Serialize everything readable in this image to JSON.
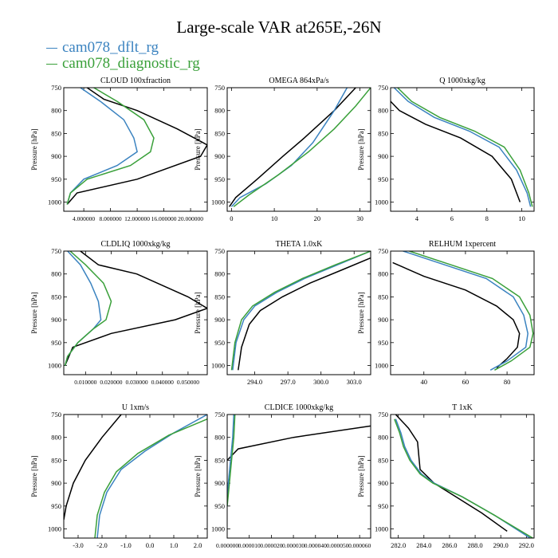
{
  "page_title": "Large-scale VAR at265E,-26N",
  "legend": [
    {
      "name": "cam078_dflt_rg",
      "color": "#3b83c0"
    },
    {
      "name": "cam078_diagnostic_rg",
      "color": "#3aa03a"
    }
  ],
  "ylabel": "Pressure [hPa]",
  "chart_data": [
    {
      "type": "line",
      "title": "CLOUD  100xfraction",
      "ylim": [
        1020,
        750
      ],
      "yticks": [
        750,
        800,
        850,
        900,
        950,
        1000
      ],
      "xlim": [
        1.0,
        22.5
      ],
      "xticks": [
        {
          "v": 4.0,
          "l": "4.000000"
        },
        {
          "v": 8.0,
          "l": "8.000000"
        },
        {
          "v": 12.0,
          "l": "12.000000"
        },
        {
          "v": 16.0,
          "l": "16.000000"
        },
        {
          "v": 20.0,
          "l": "20.000000"
        }
      ],
      "series": [
        {
          "color": "#000000",
          "x": [
            4.5,
            7,
            12,
            18,
            22.5,
            21.5,
            12,
            3,
            1.5
          ],
          "y": [
            750,
            775,
            800,
            840,
            875,
            900,
            950,
            980,
            1005
          ]
        },
        {
          "color": "#3b83c0",
          "x": [
            3.5,
            6.5,
            10,
            11.5,
            12,
            9,
            4,
            2,
            1.5
          ],
          "y": [
            750,
            780,
            820,
            860,
            890,
            920,
            950,
            980,
            1005
          ]
        },
        {
          "color": "#3aa03a",
          "x": [
            5.5,
            9,
            13,
            14.5,
            14,
            11,
            4.5,
            2,
            1.5
          ],
          "y": [
            750,
            780,
            820,
            860,
            890,
            920,
            950,
            980,
            1005
          ]
        }
      ]
    },
    {
      "type": "line",
      "title": "OMEGA  864xPa/s",
      "ylim": [
        1020,
        750
      ],
      "yticks": [
        750,
        800,
        850,
        900,
        950,
        1000
      ],
      "xlim": [
        -1,
        32.5
      ],
      "xticks": [
        {
          "v": 0,
          "l": "0"
        },
        {
          "v": 10,
          "l": "10"
        },
        {
          "v": 20,
          "l": "20"
        },
        {
          "v": 30,
          "l": "30"
        }
      ],
      "series": [
        {
          "color": "#000000",
          "x": [
            29,
            24,
            17,
            12,
            6,
            1,
            -0.5
          ],
          "y": [
            750,
            800,
            860,
            900,
            950,
            990,
            1010
          ]
        },
        {
          "color": "#3b83c0",
          "x": [
            27,
            24,
            19,
            14,
            8,
            2,
            0
          ],
          "y": [
            750,
            800,
            870,
            920,
            960,
            990,
            1010
          ]
        },
        {
          "color": "#3aa03a",
          "x": [
            32.5,
            29,
            24,
            18,
            11,
            4,
            0.5
          ],
          "y": [
            750,
            790,
            840,
            890,
            940,
            985,
            1010
          ]
        }
      ]
    },
    {
      "type": "line",
      "title": "Q  1000xkg/kg",
      "ylim": [
        1020,
        750
      ],
      "yticks": [
        750,
        800,
        850,
        900,
        950,
        1000
      ],
      "xlim": [
        2.5,
        10.7
      ],
      "xticks": [
        {
          "v": 4,
          "l": "4"
        },
        {
          "v": 6,
          "l": "6"
        },
        {
          "v": 8,
          "l": "8"
        },
        {
          "v": 10,
          "l": "10"
        }
      ],
      "series": [
        {
          "color": "#000000",
          "x": [
            2.5,
            3,
            4.5,
            6.5,
            8.3,
            9.4,
            9.9
          ],
          "y": [
            780,
            800,
            830,
            860,
            900,
            950,
            1000
          ]
        },
        {
          "color": "#3b83c0",
          "x": [
            2.7,
            3.5,
            5,
            7,
            8.7,
            9.7,
            10.3,
            10.5
          ],
          "y": [
            750,
            780,
            815,
            845,
            880,
            930,
            980,
            1010
          ]
        },
        {
          "color": "#3aa03a",
          "x": [
            2.9,
            3.7,
            5.3,
            7.3,
            9,
            9.9,
            10.4,
            10.6
          ],
          "y": [
            750,
            780,
            815,
            845,
            880,
            930,
            980,
            1010
          ]
        }
      ]
    },
    {
      "type": "line",
      "title": "CLDLIQ  1000xkg/kg",
      "ylim": [
        1020,
        750
      ],
      "yticks": [
        750,
        800,
        850,
        900,
        950,
        1000
      ],
      "xlim": [
        0.0015,
        0.0575
      ],
      "xticks": [
        {
          "v": 0.01,
          "l": "0.010000"
        },
        {
          "v": 0.02,
          "l": "0.020000"
        },
        {
          "v": 0.03,
          "l": "0.030000"
        },
        {
          "v": 0.04,
          "l": "0.040000"
        },
        {
          "v": 0.05,
          "l": "0.050000"
        }
      ],
      "series": [
        {
          "color": "#000000",
          "x": [
            0.008,
            0.015,
            0.03,
            0.05,
            0.0575,
            0.045,
            0.02,
            0.005,
            0.002
          ],
          "y": [
            750,
            780,
            800,
            850,
            875,
            900,
            930,
            960,
            1000
          ]
        },
        {
          "color": "#3b83c0",
          "x": [
            0.003,
            0.008,
            0.012,
            0.015,
            0.016,
            0.013,
            0.007,
            0.003,
            0.002
          ],
          "y": [
            750,
            780,
            820,
            860,
            900,
            920,
            950,
            980,
            1000
          ]
        },
        {
          "color": "#3aa03a",
          "x": [
            0.004,
            0.01,
            0.017,
            0.02,
            0.018,
            0.013,
            0.007,
            0.003,
            0.002
          ],
          "y": [
            750,
            780,
            820,
            860,
            900,
            920,
            950,
            980,
            1000
          ]
        }
      ]
    },
    {
      "type": "line",
      "title": "THETA  1.0xK",
      "ylim": [
        1020,
        750
      ],
      "yticks": [
        750,
        800,
        850,
        900,
        950,
        1000
      ],
      "xlim": [
        291.5,
        304.5
      ],
      "xticks": [
        {
          "v": 294,
          "l": "294.0"
        },
        {
          "v": 297,
          "l": "297.0"
        },
        {
          "v": 300,
          "l": "300.0"
        },
        {
          "v": 303,
          "l": "303.0"
        }
      ],
      "series": [
        {
          "color": "#000000",
          "x": [
            304.5,
            302,
            299,
            296.5,
            294.5,
            293.5,
            292.8,
            292.5
          ],
          "y": [
            765,
            790,
            820,
            850,
            880,
            910,
            960,
            1010
          ]
        },
        {
          "color": "#3b83c0",
          "x": [
            304.5,
            301.5,
            298.5,
            296,
            294,
            293,
            292.3,
            292
          ],
          "y": [
            750,
            780,
            810,
            840,
            870,
            900,
            950,
            1010
          ]
        },
        {
          "color": "#3aa03a",
          "x": [
            304.5,
            301.3,
            298.3,
            295.8,
            293.8,
            292.8,
            292.2,
            291.9
          ],
          "y": [
            750,
            780,
            810,
            840,
            870,
            900,
            950,
            1010
          ]
        }
      ]
    },
    {
      "type": "line",
      "title": "RELHUM  1xpercent",
      "ylim": [
        1020,
        750
      ],
      "yticks": [
        750,
        800,
        850,
        900,
        950,
        1000
      ],
      "xlim": [
        24,
        93
      ],
      "xticks": [
        {
          "v": 40,
          "l": "40"
        },
        {
          "v": 60,
          "l": "60"
        },
        {
          "v": 80,
          "l": "80"
        }
      ],
      "series": [
        {
          "color": "#000000",
          "x": [
            25,
            40,
            60,
            75,
            83,
            86,
            85,
            80,
            75
          ],
          "y": [
            775,
            805,
            835,
            870,
            900,
            930,
            960,
            985,
            1005
          ]
        },
        {
          "color": "#3b83c0",
          "x": [
            30,
            50,
            70,
            83,
            88,
            90,
            89,
            80,
            72
          ],
          "y": [
            750,
            780,
            810,
            850,
            890,
            930,
            960,
            990,
            1010
          ]
        },
        {
          "color": "#3aa03a",
          "x": [
            33,
            53,
            73,
            86,
            91,
            92.5,
            91,
            82,
            74
          ],
          "y": [
            750,
            780,
            810,
            850,
            890,
            930,
            960,
            990,
            1010
          ]
        }
      ]
    },
    {
      "type": "line",
      "title": "U  1xm/s",
      "ylim": [
        1020,
        750
      ],
      "yticks": [
        750,
        800,
        850,
        900,
        950,
        1000
      ],
      "xlim": [
        -3.6,
        2.4
      ],
      "xticks": [
        {
          "v": -3,
          "l": "-3.0"
        },
        {
          "v": -2,
          "l": "-2.0"
        },
        {
          "v": -1,
          "l": "-1.0"
        },
        {
          "v": 0,
          "l": "0.0"
        },
        {
          "v": 1,
          "l": "1.0"
        },
        {
          "v": 2,
          "l": "2.0"
        }
      ],
      "series": [
        {
          "color": "#000000",
          "x": [
            -1.2,
            -2,
            -2.7,
            -3.2,
            -3.5,
            -3.6
          ],
          "y": [
            750,
            800,
            850,
            900,
            950,
            980
          ]
        },
        {
          "color": "#3b83c0",
          "x": [
            2.4,
            1,
            -0.2,
            -1.2,
            -1.8,
            -2.1,
            -2.2
          ],
          "y": [
            750,
            790,
            830,
            870,
            920,
            970,
            1020
          ]
        },
        {
          "color": "#3aa03a",
          "x": [
            2.4,
            0.8,
            -0.5,
            -1.4,
            -1.9,
            -2.2,
            -2.3
          ],
          "y": [
            760,
            795,
            835,
            875,
            920,
            970,
            1020
          ]
        }
      ]
    },
    {
      "type": "line",
      "title": "CLDICE  1000xkg/kg",
      "ylim": [
        1020,
        750
      ],
      "yticks": [
        750,
        800,
        850,
        900,
        950,
        1000
      ],
      "xlim": [
        0,
        6.5e-05
      ],
      "xticks": [
        {
          "v": 0,
          "l": "0.000000"
        },
        {
          "v": 1e-05,
          "l": "0.000010"
        },
        {
          "v": 2e-05,
          "l": "0.000020"
        },
        {
          "v": 3e-05,
          "l": "0.000030"
        },
        {
          "v": 4e-05,
          "l": "0.000040"
        },
        {
          "v": 5e-05,
          "l": "0.000050"
        },
        {
          "v": 6e-05,
          "l": "0.000060"
        }
      ],
      "series": [
        {
          "color": "#000000",
          "x": [
            6.5e-05,
            3e-05,
            5e-06,
            0
          ],
          "y": [
            775,
            800,
            825,
            850
          ]
        },
        {
          "color": "#3b83c0",
          "x": [
            3e-06,
            2.5e-06,
            1.5e-06,
            5e-07,
            0
          ],
          "y": [
            750,
            800,
            850,
            900,
            950
          ]
        },
        {
          "color": "#3aa03a",
          "x": [
            3.5e-06,
            3e-06,
            2e-06,
            1e-06,
            0
          ],
          "y": [
            750,
            800,
            850,
            900,
            950
          ]
        }
      ]
    },
    {
      "type": "line",
      "title": "T  1xK",
      "ylim": [
        1020,
        750
      ],
      "yticks": [
        750,
        800,
        850,
        900,
        950,
        1000
      ],
      "xlim": [
        281.4,
        292.6
      ],
      "xticks": [
        {
          "v": 282,
          "l": "282.0"
        },
        {
          "v": 284,
          "l": "284.0"
        },
        {
          "v": 286,
          "l": "286.0"
        },
        {
          "v": 288,
          "l": "288.0"
        },
        {
          "v": 290,
          "l": "290.0"
        },
        {
          "v": 292,
          "l": "292.0"
        }
      ],
      "series": [
        {
          "color": "#000000",
          "x": [
            281.8,
            282.8,
            283.5,
            283.6,
            283.7,
            284.8,
            286.5,
            288.5,
            290.5
          ],
          "y": [
            750,
            780,
            810,
            840,
            870,
            900,
            930,
            965,
            1005
          ]
        },
        {
          "color": "#3b83c0",
          "x": [
            281.8,
            282.2,
            282.5,
            283,
            283.8,
            284.8,
            287,
            289.5,
            292.3
          ],
          "y": [
            760,
            790,
            820,
            850,
            880,
            900,
            930,
            970,
            1020
          ]
        },
        {
          "color": "#3aa03a",
          "x": [
            281.7,
            282.1,
            282.4,
            282.9,
            283.7,
            284.7,
            287,
            289.5,
            292.5
          ],
          "y": [
            760,
            790,
            820,
            850,
            880,
            900,
            930,
            970,
            1020
          ]
        }
      ]
    }
  ]
}
